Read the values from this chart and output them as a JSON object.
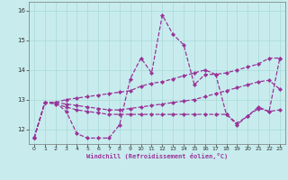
{
  "xlabel": "Windchill (Refroidissement éolien,°C)",
  "xlim": [
    -0.5,
    23.5
  ],
  "ylim": [
    11.5,
    16.3
  ],
  "yticks": [
    12,
    13,
    14,
    15,
    16
  ],
  "xticks": [
    0,
    1,
    2,
    3,
    4,
    5,
    6,
    7,
    8,
    9,
    10,
    11,
    12,
    13,
    14,
    15,
    16,
    17,
    18,
    19,
    20,
    21,
    22,
    23
  ],
  "bg_color": "#c8eced",
  "line_color": "#993399",
  "grid_color": "#a8d8d8",
  "line1_jagged": [
    11.7,
    12.9,
    12.9,
    12.6,
    11.85,
    11.7,
    11.7,
    11.7,
    12.15,
    13.7,
    14.4,
    13.9,
    15.85,
    15.2,
    14.85,
    13.5,
    13.85,
    13.85,
    12.5,
    12.15,
    12.45,
    12.7,
    12.6,
    14.4
  ],
  "line2_upper": [
    11.7,
    12.9,
    12.9,
    13.0,
    13.05,
    13.1,
    13.15,
    13.2,
    13.25,
    13.3,
    13.45,
    13.55,
    13.6,
    13.7,
    13.8,
    13.9,
    14.0,
    13.85,
    13.9,
    14.0,
    14.1,
    14.2,
    14.4,
    14.4
  ],
  "line3_mid": [
    11.7,
    12.9,
    12.9,
    12.85,
    12.8,
    12.75,
    12.7,
    12.65,
    12.65,
    12.7,
    12.75,
    12.8,
    12.85,
    12.9,
    12.95,
    13.0,
    13.1,
    13.2,
    13.3,
    13.4,
    13.5,
    13.6,
    13.65,
    13.35
  ],
  "line4_lower": [
    11.7,
    12.9,
    12.85,
    12.75,
    12.65,
    12.6,
    12.55,
    12.5,
    12.5,
    12.5,
    12.5,
    12.5,
    12.5,
    12.5,
    12.5,
    12.5,
    12.5,
    12.5,
    12.5,
    12.2,
    12.45,
    12.75,
    12.6,
    12.65
  ]
}
